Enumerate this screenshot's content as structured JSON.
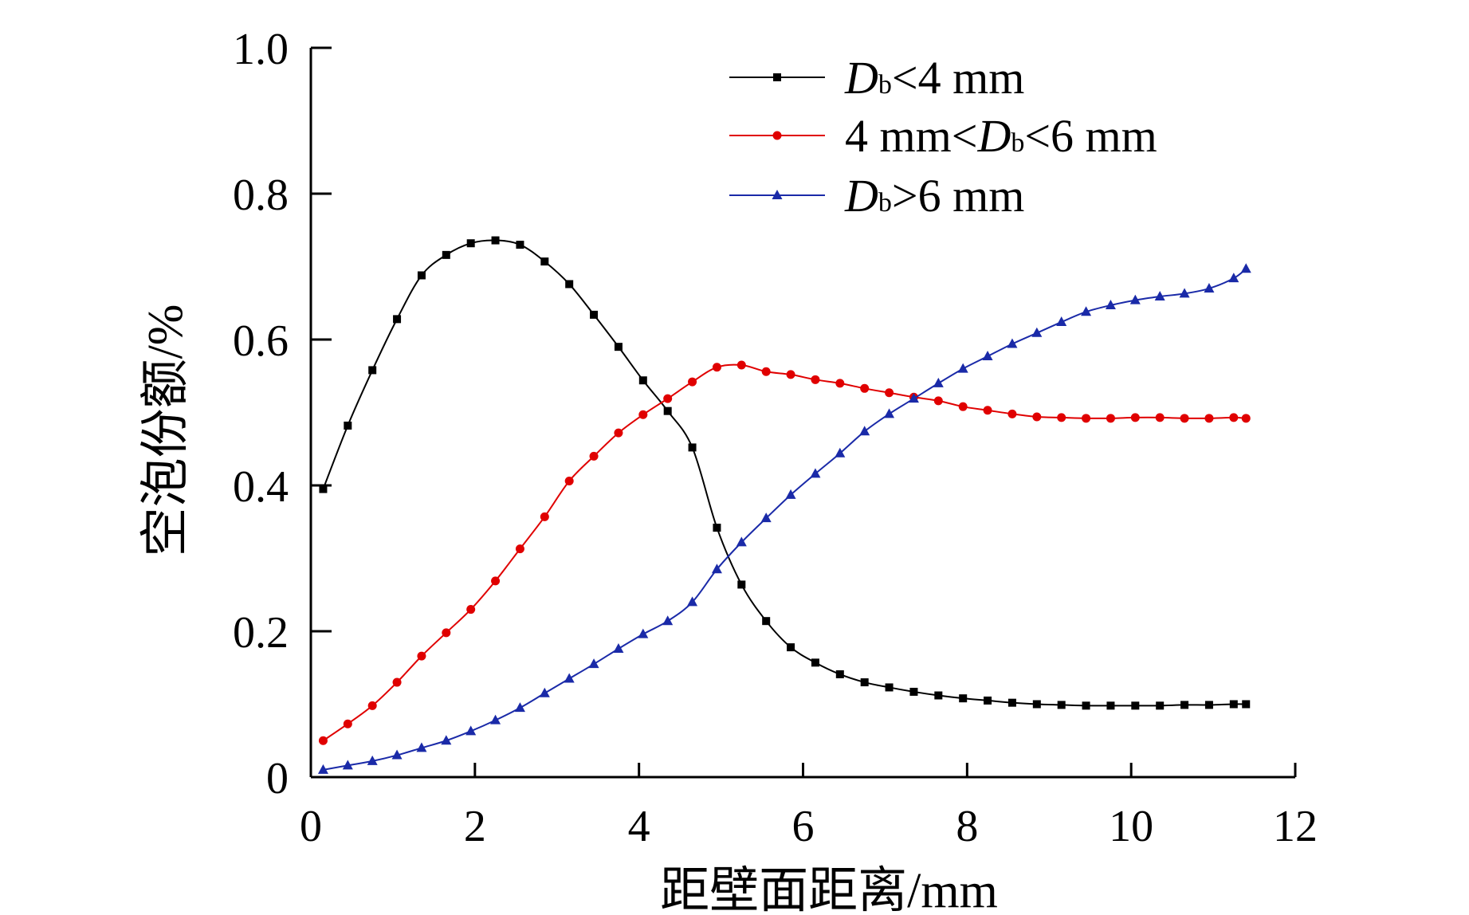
{
  "chart_data": {
    "type": "line",
    "title": "",
    "xlabel": "距壁面距离/mm",
    "ylabel": "空泡份额/%",
    "xlim": [
      0,
      12
    ],
    "ylim": [
      0,
      1.0
    ],
    "xticks": [
      0,
      2,
      4,
      6,
      8,
      10,
      12
    ],
    "yticks": [
      0,
      0.2,
      0.4,
      0.6,
      0.8,
      1.0
    ],
    "xtick_labels": [
      "0",
      "2",
      "4",
      "6",
      "8",
      "10",
      "12"
    ],
    "ytick_labels": [
      "0",
      "0.2",
      "0.4",
      "0.6",
      "0.8",
      "1.0"
    ],
    "legend_position": "top-right",
    "series": [
      {
        "name": "Db<4 mm",
        "legend_parts": [
          "",
          "D",
          "b",
          "<4 mm"
        ],
        "color": "#000000",
        "marker": "square",
        "x": [
          0.15,
          0.45,
          0.75,
          1.05,
          1.35,
          1.65,
          1.95,
          2.25,
          2.55,
          2.85,
          3.15,
          3.45,
          3.75,
          4.05,
          4.35,
          4.65,
          4.95,
          5.25,
          5.55,
          5.85,
          6.15,
          6.45,
          6.75,
          7.05,
          7.35,
          7.65,
          7.95,
          8.25,
          8.55,
          8.85,
          9.15,
          9.45,
          9.75,
          10.05,
          10.35,
          10.65,
          10.95,
          11.25,
          11.4
        ],
        "y": [
          0.395,
          0.482,
          0.558,
          0.628,
          0.688,
          0.716,
          0.732,
          0.736,
          0.73,
          0.707,
          0.676,
          0.634,
          0.59,
          0.544,
          0.502,
          0.452,
          0.342,
          0.264,
          0.214,
          0.178,
          0.157,
          0.141,
          0.13,
          0.123,
          0.117,
          0.112,
          0.108,
          0.105,
          0.102,
          0.1,
          0.099,
          0.098,
          0.098,
          0.098,
          0.098,
          0.099,
          0.099,
          0.1,
          0.1
        ]
      },
      {
        "name": "4 mm<Db<6 mm",
        "legend_parts": [
          "4 mm<",
          "D",
          "b",
          "<6 mm"
        ],
        "color": "#e00000",
        "marker": "circle",
        "x": [
          0.15,
          0.45,
          0.75,
          1.05,
          1.35,
          1.65,
          1.95,
          2.25,
          2.55,
          2.85,
          3.15,
          3.45,
          3.75,
          4.05,
          4.35,
          4.65,
          4.95,
          5.25,
          5.55,
          5.85,
          6.15,
          6.45,
          6.75,
          7.05,
          7.35,
          7.65,
          7.95,
          8.25,
          8.55,
          8.85,
          9.15,
          9.45,
          9.75,
          10.05,
          10.35,
          10.65,
          10.95,
          11.25,
          11.4
        ],
        "y": [
          0.05,
          0.073,
          0.098,
          0.13,
          0.166,
          0.198,
          0.23,
          0.269,
          0.313,
          0.357,
          0.406,
          0.44,
          0.472,
          0.497,
          0.519,
          0.542,
          0.562,
          0.565,
          0.556,
          0.552,
          0.545,
          0.54,
          0.533,
          0.527,
          0.521,
          0.516,
          0.508,
          0.503,
          0.498,
          0.494,
          0.493,
          0.492,
          0.492,
          0.493,
          0.493,
          0.492,
          0.492,
          0.493,
          0.492
        ]
      },
      {
        "name": "Db>6 mm",
        "legend_parts": [
          "",
          "D",
          "b",
          ">6 mm"
        ],
        "color": "#1a2aa8",
        "marker": "triangle",
        "x": [
          0.15,
          0.45,
          0.75,
          1.05,
          1.35,
          1.65,
          1.95,
          2.25,
          2.55,
          2.85,
          3.15,
          3.45,
          3.75,
          4.05,
          4.35,
          4.65,
          4.95,
          5.25,
          5.55,
          5.85,
          6.15,
          6.45,
          6.75,
          7.05,
          7.35,
          7.65,
          7.95,
          8.25,
          8.55,
          8.85,
          9.15,
          9.45,
          9.75,
          10.05,
          10.35,
          10.65,
          10.95,
          11.25,
          11.4
        ],
        "y": [
          0.01,
          0.016,
          0.022,
          0.03,
          0.04,
          0.05,
          0.063,
          0.078,
          0.095,
          0.115,
          0.135,
          0.155,
          0.176,
          0.196,
          0.214,
          0.24,
          0.285,
          0.322,
          0.355,
          0.387,
          0.416,
          0.444,
          0.474,
          0.498,
          0.519,
          0.54,
          0.56,
          0.577,
          0.594,
          0.609,
          0.624,
          0.638,
          0.647,
          0.654,
          0.659,
          0.663,
          0.67,
          0.684,
          0.697
        ]
      }
    ]
  }
}
